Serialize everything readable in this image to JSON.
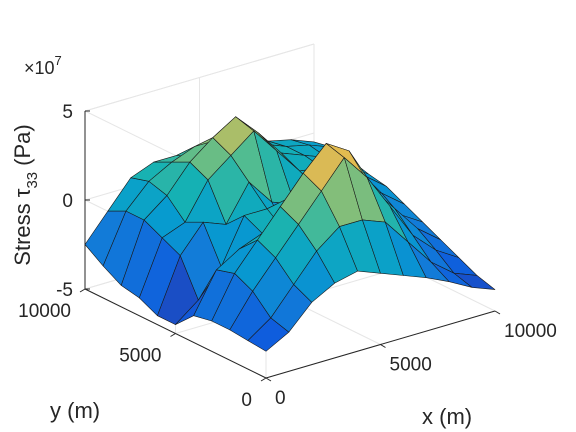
{
  "chart_data": {
    "type": "surface",
    "title": "",
    "xlabel": "x (m)",
    "ylabel": "y (m)",
    "zlabel": "Stress τ",
    "zlabel_sub": "33",
    "zlabel_unit": "(Pa)",
    "z_exponent_text": "×10",
    "z_exponent_power": "7",
    "x_ticks": [
      {
        "value": 0,
        "label": "0"
      },
      {
        "value": 5000,
        "label": "5000"
      },
      {
        "value": 10000,
        "label": "10000"
      }
    ],
    "y_ticks": [
      {
        "value": 0,
        "label": "0"
      },
      {
        "value": 5000,
        "label": "5000"
      },
      {
        "value": 10000,
        "label": "10000"
      }
    ],
    "z_ticks": [
      {
        "value": -5,
        "label": "-5"
      },
      {
        "value": 0,
        "label": "0"
      },
      {
        "value": 5,
        "label": "5"
      }
    ],
    "xlim": [
      0,
      10000
    ],
    "ylim": [
      0,
      10000
    ],
    "zlim": [
      -5,
      5
    ],
    "z_scale": 10000000,
    "colormap": "parula",
    "grid": true,
    "x": [
      0,
      1000,
      2000,
      3000,
      4000,
      5000,
      6000,
      7000,
      8000,
      9000,
      10000
    ],
    "y": [
      0,
      1000,
      2000,
      3000,
      4000,
      5000,
      6000,
      7000,
      8000,
      9000,
      10000
    ],
    "z": [
      [
        -3.5,
        -2.8,
        -1.5,
        -0.8,
        -0.5,
        -1.0,
        -1.5,
        -2.0,
        -2.6,
        -3.3,
        -3.8
      ],
      [
        -3.4,
        -2.5,
        -1.0,
        0.5,
        1.5,
        1.5,
        1.0,
        -0.5,
        -2.0,
        -3.0,
        -3.5
      ],
      [
        -3.3,
        -1.5,
        0.0,
        1.5,
        3.0,
        4.5,
        3.0,
        1.0,
        -1.0,
        -2.2,
        -3.0
      ],
      [
        -3.3,
        -1.0,
        0.5,
        2.0,
        3.5,
        4.8,
        4.0,
        1.5,
        0.0,
        -1.5,
        -2.5
      ],
      [
        -3.5,
        -1.3,
        -0.5,
        0.0,
        1.5,
        2.5,
        2.0,
        1.0,
        -0.5,
        -1.2,
        -2.0
      ],
      [
        -4.5,
        -3.5,
        -2.0,
        0.5,
        0.5,
        -1.5,
        -1.0,
        0.0,
        0.0,
        -0.5,
        -1.5
      ],
      [
        -4.5,
        -1.5,
        0.0,
        -0.5,
        1.5,
        0.0,
        -0.5,
        0.0,
        0.5,
        0.0,
        -1.0
      ],
      [
        -4.0,
        -1.0,
        -0.5,
        1.5,
        2.5,
        3.5,
        2.0,
        0.5,
        0.3,
        0.0,
        -0.8
      ],
      [
        -3.8,
        -0.5,
        0.5,
        2.0,
        3.0,
        3.8,
        2.5,
        1.0,
        0.5,
        0.0,
        -0.5
      ],
      [
        -3.2,
        -0.5,
        0.8,
        1.5,
        2.0,
        2.0,
        1.5,
        1.0,
        0.5,
        0.2,
        -0.3
      ],
      [
        -2.5,
        -1.0,
        0.5,
        1.0,
        1.0,
        0.5,
        0.5,
        0.5,
        0.3,
        0.0,
        -0.5
      ]
    ]
  }
}
